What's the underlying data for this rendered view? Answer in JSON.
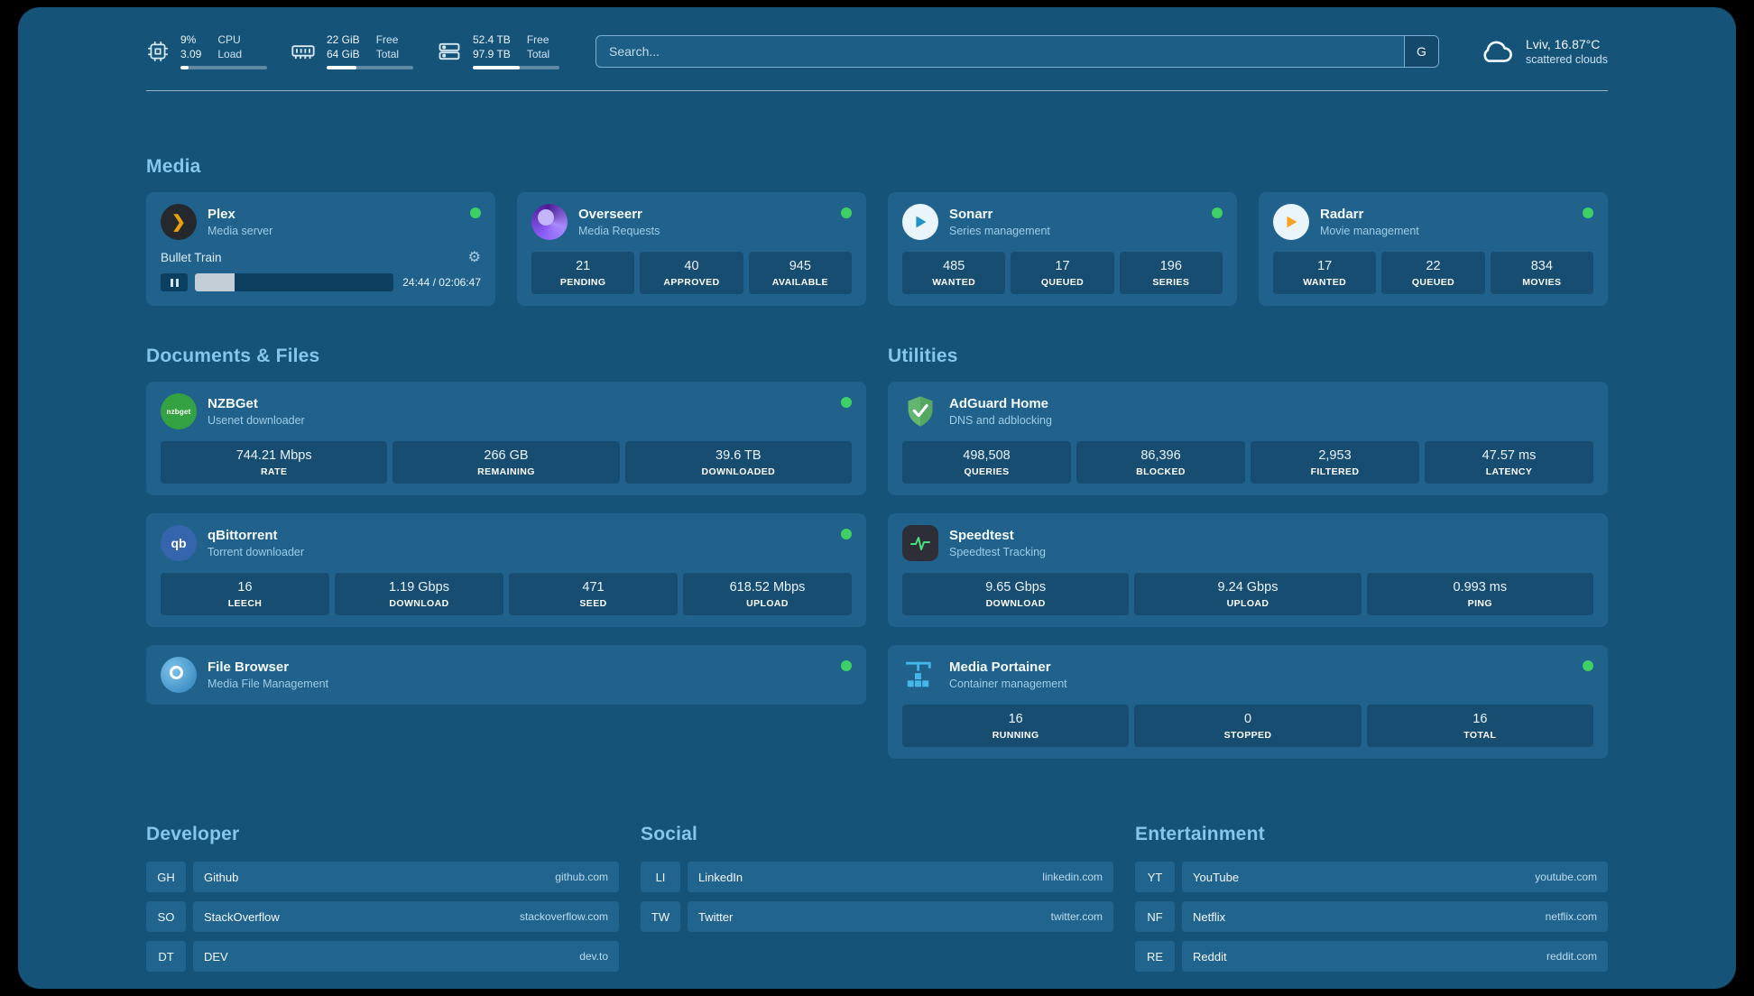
{
  "topbar": {
    "cpu": {
      "value1": "9%",
      "value2": "3.09",
      "label1": "CPU",
      "label2": "Load",
      "percent": 9
    },
    "ram": {
      "value1": "22 GiB",
      "value2": "64 GiB",
      "label1": "Free",
      "label2": "Total",
      "percent": 34
    },
    "disk": {
      "value1": "52.4 TB",
      "value2": "97.9 TB",
      "label1": "Free",
      "label2": "Total",
      "percent": 54
    },
    "search": {
      "placeholder": "Search...",
      "button": "G"
    },
    "weather": {
      "location": "Lviv, 16.87°C",
      "condition": "scattered clouds"
    }
  },
  "sections": {
    "media": "Media",
    "documents": "Documents & Files",
    "utilities": "Utilities",
    "developer": "Developer",
    "social": "Social",
    "entertainment": "Entertainment"
  },
  "icons": {
    "gear": "⚙",
    "plex_chevron": "❯"
  },
  "media": {
    "cards": [
      {
        "name": "Plex",
        "subtitle": "Media server",
        "now_playing": "Bullet Train",
        "time": "24:44 / 02:06:47",
        "progress_percent": 20
      },
      {
        "name": "Overseerr",
        "subtitle": "Media Requests",
        "stats": [
          {
            "value": "21",
            "label": "PENDING"
          },
          {
            "value": "40",
            "label": "APPROVED"
          },
          {
            "value": "945",
            "label": "AVAILABLE"
          }
        ]
      },
      {
        "name": "Sonarr",
        "subtitle": "Series management",
        "stats": [
          {
            "value": "485",
            "label": "WANTED"
          },
          {
            "value": "17",
            "label": "QUEUED"
          },
          {
            "value": "196",
            "label": "SERIES"
          }
        ]
      },
      {
        "name": "Radarr",
        "subtitle": "Movie management",
        "stats": [
          {
            "value": "17",
            "label": "WANTED"
          },
          {
            "value": "22",
            "label": "QUEUED"
          },
          {
            "value": "834",
            "label": "MOVIES"
          }
        ]
      }
    ]
  },
  "documents": {
    "cards": [
      {
        "name": "NZBGet",
        "subtitle": "Usenet downloader",
        "icon_text": "nzbget",
        "stats": [
          {
            "value": "744.21 Mbps",
            "label": "RATE"
          },
          {
            "value": "266 GB",
            "label": "REMAINING"
          },
          {
            "value": "39.6 TB",
            "label": "DOWNLOADED"
          }
        ]
      },
      {
        "name": "qBittorrent",
        "subtitle": "Torrent downloader",
        "icon_text": "qb",
        "stats": [
          {
            "value": "16",
            "label": "LEECH"
          },
          {
            "value": "1.19 Gbps",
            "label": "DOWNLOAD"
          },
          {
            "value": "471",
            "label": "SEED"
          },
          {
            "value": "618.52 Mbps",
            "label": "UPLOAD"
          }
        ]
      },
      {
        "name": "File Browser",
        "subtitle": "Media File Management"
      }
    ]
  },
  "utilities": {
    "cards": [
      {
        "name": "AdGuard Home",
        "subtitle": "DNS and adblocking",
        "stats": [
          {
            "value": "498,508",
            "label": "QUERIES"
          },
          {
            "value": "86,396",
            "label": "BLOCKED"
          },
          {
            "value": "2,953",
            "label": "FILTERED"
          },
          {
            "value": "47.57 ms",
            "label": "LATENCY"
          }
        ]
      },
      {
        "name": "Speedtest",
        "subtitle": "Speedtest Tracking",
        "stats": [
          {
            "value": "9.65 Gbps",
            "label": "DOWNLOAD"
          },
          {
            "value": "9.24 Gbps",
            "label": "UPLOAD"
          },
          {
            "value": "0.993 ms",
            "label": "PING"
          }
        ]
      },
      {
        "name": "Media Portainer",
        "subtitle": "Container management",
        "stats": [
          {
            "value": "16",
            "label": "RUNNING"
          },
          {
            "value": "0",
            "label": "STOPPED"
          },
          {
            "value": "16",
            "label": "TOTAL"
          }
        ]
      }
    ]
  },
  "bookmarks": {
    "developer": [
      {
        "abbr": "GH",
        "name": "Github",
        "url": "github.com"
      },
      {
        "abbr": "SO",
        "name": "StackOverflow",
        "url": "stackoverflow.com"
      },
      {
        "abbr": "DT",
        "name": "DEV",
        "url": "dev.to"
      }
    ],
    "social": [
      {
        "abbr": "LI",
        "name": "LinkedIn",
        "url": "linkedin.com"
      },
      {
        "abbr": "TW",
        "name": "Twitter",
        "url": "twitter.com"
      }
    ],
    "entertainment": [
      {
        "abbr": "YT",
        "name": "YouTube",
        "url": "youtube.com"
      },
      {
        "abbr": "NF",
        "name": "Netflix",
        "url": "netflix.com"
      },
      {
        "abbr": "RE",
        "name": "Reddit",
        "url": "reddit.com"
      }
    ]
  }
}
